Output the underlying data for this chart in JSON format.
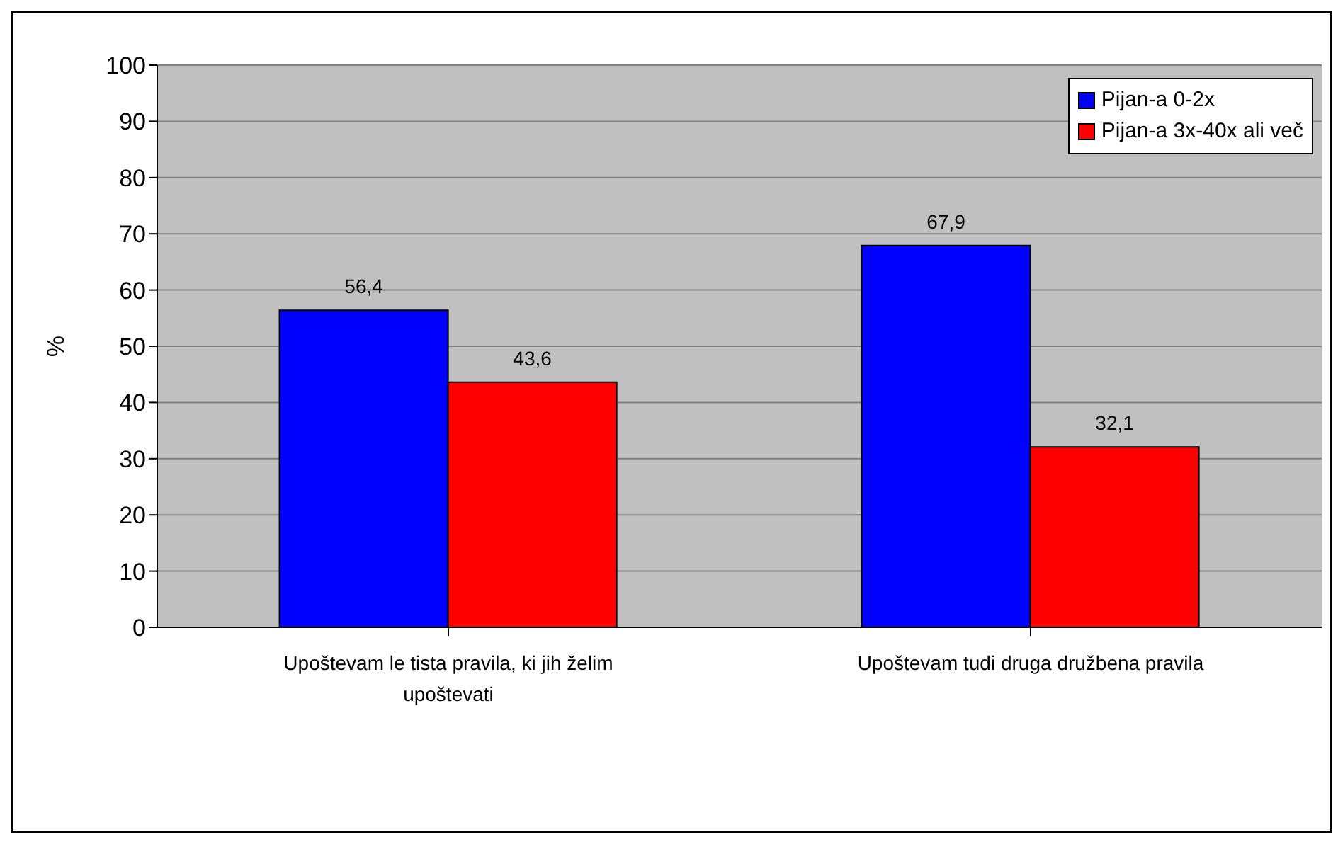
{
  "chart_data": {
    "type": "bar",
    "ylabel": "%",
    "categories": [
      "Upoštevam le tista pravila, ki jih želim upoštevati",
      "Upoštevam tudi druga družbena pravila"
    ],
    "series": [
      {
        "name": "Pijan-a 0-2x",
        "color": "#0000ff",
        "values": [
          56.4,
          67.9
        ],
        "value_labels": [
          "56,4",
          "67,9"
        ]
      },
      {
        "name": "Pijan-a 3x-40x ali več",
        "color": "#ff0000",
        "values": [
          43.6,
          32.1
        ],
        "value_labels": [
          "43,6",
          "32,1"
        ]
      }
    ],
    "ylim": [
      0,
      100
    ],
    "yticks": [
      0,
      10,
      20,
      30,
      40,
      50,
      60,
      70,
      80,
      90,
      100
    ],
    "grid": "y",
    "legend": "top right"
  }
}
